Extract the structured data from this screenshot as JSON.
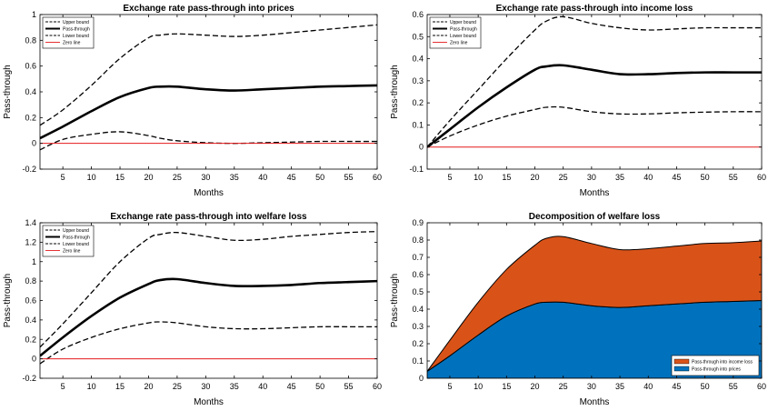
{
  "chart_data": [
    {
      "type": "line",
      "title": "Exchange rate pass-through into prices",
      "xlabel": "Months",
      "ylabel": "Pass-through",
      "xlim": [
        1,
        60
      ],
      "ylim": [
        -0.2,
        1
      ],
      "xticks": [
        5,
        10,
        15,
        20,
        25,
        30,
        35,
        40,
        45,
        50,
        55,
        60
      ],
      "yticks": [
        "-0.2",
        "0",
        "0.2",
        "0.4",
        "0.6",
        "0.8",
        "1"
      ],
      "legend_position": "top-left",
      "x": [
        1,
        5,
        10,
        15,
        20,
        22,
        25,
        30,
        35,
        40,
        45,
        50,
        55,
        60
      ],
      "series": [
        {
          "name": "Upper bound",
          "style": "dashed",
          "values": [
            0.14,
            0.26,
            0.45,
            0.66,
            0.82,
            0.84,
            0.85,
            0.84,
            0.83,
            0.84,
            0.86,
            0.88,
            0.9,
            0.92
          ]
        },
        {
          "name": "Pass-through",
          "style": "solid-thick",
          "values": [
            0.04,
            0.13,
            0.25,
            0.36,
            0.43,
            0.44,
            0.44,
            0.42,
            0.41,
            0.42,
            0.43,
            0.44,
            0.445,
            0.45
          ]
        },
        {
          "name": "Lower bound",
          "style": "dashed",
          "values": [
            -0.05,
            0.03,
            0.07,
            0.09,
            0.06,
            0.04,
            0.02,
            0.005,
            0.0,
            0.005,
            0.01,
            0.015,
            0.015,
            0.015
          ]
        },
        {
          "name": "Zero line",
          "style": "red",
          "values": [
            0,
            0,
            0,
            0,
            0,
            0,
            0,
            0,
            0,
            0,
            0,
            0,
            0,
            0
          ]
        }
      ]
    },
    {
      "type": "line",
      "title": "Exchange rate pass-through into income loss",
      "xlabel": "Months",
      "ylabel": "Pass-through",
      "xlim": [
        1,
        60
      ],
      "ylim": [
        -0.1,
        0.6
      ],
      "xticks": [
        5,
        10,
        15,
        20,
        25,
        30,
        35,
        40,
        45,
        50,
        55,
        60
      ],
      "yticks": [
        "-0.1",
        "0",
        "0.1",
        "0.2",
        "0.3",
        "0.4",
        "0.5",
        "0.6"
      ],
      "legend_position": "top-left",
      "x": [
        1,
        5,
        10,
        15,
        20,
        22,
        25,
        30,
        35,
        40,
        45,
        50,
        55,
        60
      ],
      "series": [
        {
          "name": "Upper bound",
          "style": "dashed",
          "values": [
            0.0,
            0.12,
            0.26,
            0.4,
            0.53,
            0.57,
            0.59,
            0.56,
            0.54,
            0.53,
            0.535,
            0.54,
            0.54,
            0.54
          ]
        },
        {
          "name": "Pass-through",
          "style": "solid-thick",
          "values": [
            0.0,
            0.08,
            0.18,
            0.27,
            0.35,
            0.365,
            0.37,
            0.35,
            0.33,
            0.33,
            0.335,
            0.338,
            0.338,
            0.338
          ]
        },
        {
          "name": "Lower bound",
          "style": "dashed",
          "values": [
            0.0,
            0.05,
            0.1,
            0.14,
            0.17,
            0.18,
            0.18,
            0.16,
            0.15,
            0.15,
            0.155,
            0.158,
            0.16,
            0.16
          ]
        },
        {
          "name": "Zero line",
          "style": "red",
          "values": [
            0,
            0,
            0,
            0,
            0,
            0,
            0,
            0,
            0,
            0,
            0,
            0,
            0,
            0
          ]
        }
      ]
    },
    {
      "type": "line",
      "title": "Exchange rate pass-through into welfare loss",
      "xlabel": "Months",
      "ylabel": "Pass-through",
      "xlim": [
        1,
        60
      ],
      "ylim": [
        -0.2,
        1.4
      ],
      "xticks": [
        5,
        10,
        15,
        20,
        25,
        30,
        35,
        40,
        45,
        50,
        55,
        60
      ],
      "yticks": [
        "-0.2",
        "0",
        "0.2",
        "0.4",
        "0.6",
        "0.8",
        "1",
        "1.2",
        "1.4"
      ],
      "legend_position": "top-left",
      "x": [
        1,
        5,
        10,
        15,
        20,
        22,
        25,
        30,
        35,
        40,
        45,
        50,
        55,
        60
      ],
      "series": [
        {
          "name": "Upper bound",
          "style": "dashed",
          "values": [
            0.12,
            0.36,
            0.68,
            1.0,
            1.24,
            1.28,
            1.3,
            1.26,
            1.22,
            1.23,
            1.26,
            1.28,
            1.3,
            1.31
          ]
        },
        {
          "name": "Pass-through",
          "style": "solid-thick",
          "values": [
            0.03,
            0.22,
            0.44,
            0.63,
            0.77,
            0.81,
            0.82,
            0.78,
            0.75,
            0.75,
            0.76,
            0.78,
            0.79,
            0.8
          ]
        },
        {
          "name": "Lower bound",
          "style": "dashed",
          "values": [
            -0.05,
            0.1,
            0.22,
            0.31,
            0.37,
            0.38,
            0.37,
            0.33,
            0.31,
            0.31,
            0.32,
            0.33,
            0.33,
            0.33
          ]
        },
        {
          "name": "Zero line",
          "style": "red",
          "values": [
            0,
            0,
            0,
            0,
            0,
            0,
            0,
            0,
            0,
            0,
            0,
            0,
            0,
            0
          ]
        }
      ]
    },
    {
      "type": "area",
      "stacked": true,
      "title": "Decomposition of welfare loss",
      "xlabel": "Months",
      "ylabel": "Pass-through",
      "xlim": [
        1,
        60
      ],
      "ylim": [
        0,
        0.9
      ],
      "xticks": [
        5,
        10,
        15,
        20,
        25,
        30,
        35,
        40,
        45,
        50,
        55,
        60
      ],
      "yticks": [
        "0",
        "0.1",
        "0.2",
        "0.3",
        "0.4",
        "0.5",
        "0.6",
        "0.7",
        "0.8",
        "0.9"
      ],
      "legend_position": "bottom-right",
      "x": [
        1,
        5,
        10,
        15,
        20,
        22,
        25,
        30,
        35,
        40,
        45,
        50,
        55,
        60
      ],
      "series": [
        {
          "name": "Pass-through into prices",
          "color": "#0072BD",
          "values": [
            0.04,
            0.13,
            0.25,
            0.36,
            0.43,
            0.44,
            0.44,
            0.42,
            0.41,
            0.42,
            0.43,
            0.44,
            0.445,
            0.45
          ]
        },
        {
          "name": "Pass-through into income loss",
          "color": "#D95319",
          "values": [
            0.0,
            0.09,
            0.19,
            0.27,
            0.34,
            0.37,
            0.38,
            0.36,
            0.335,
            0.33,
            0.335,
            0.34,
            0.34,
            0.345
          ]
        }
      ],
      "legend_order": [
        "Pass-through into income loss",
        "Pass-through into prices"
      ]
    }
  ]
}
